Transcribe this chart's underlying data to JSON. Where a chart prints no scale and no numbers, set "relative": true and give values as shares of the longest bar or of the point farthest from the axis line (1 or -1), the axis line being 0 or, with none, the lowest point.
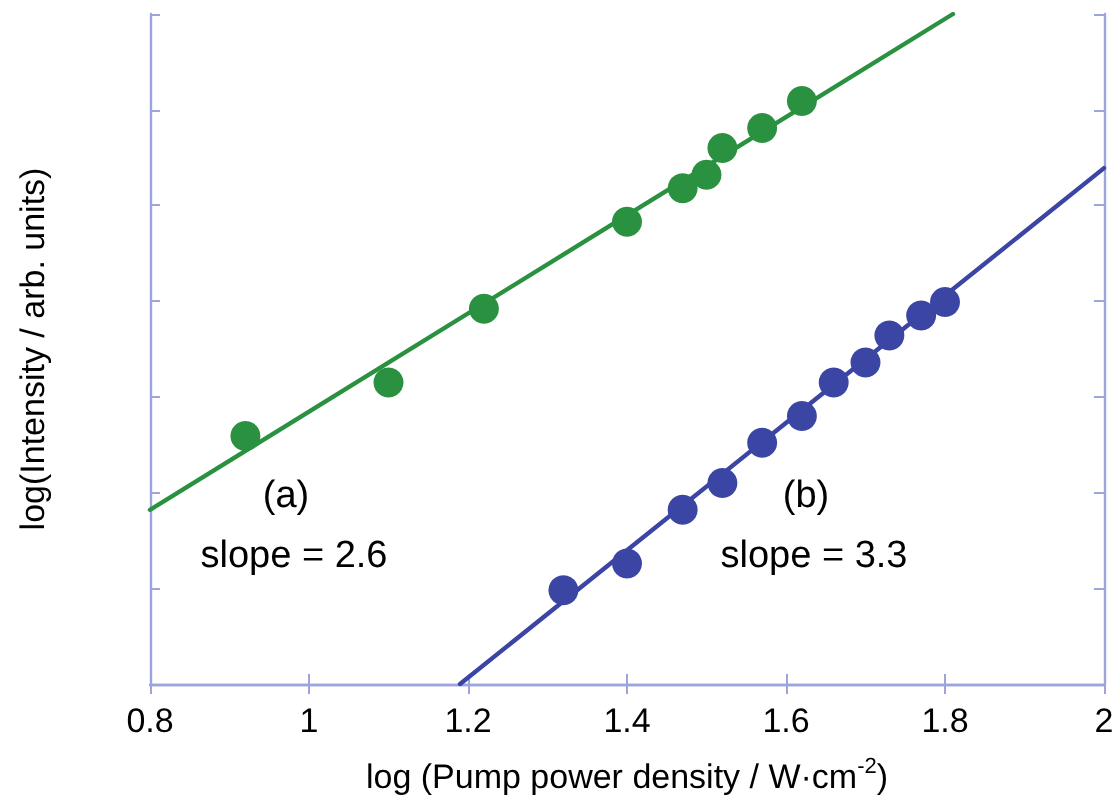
{
  "chart_data": {
    "type": "scatter",
    "xlabel": "log (Pump power density / W·cm$^{-2}$)",
    "ylabel": "log(Intensity / arb. units)",
    "relative": true,
    "xlim": [
      0.8,
      2
    ],
    "xticks": [
      0.8,
      1,
      1.2,
      1.4,
      1.6,
      1.8,
      2
    ],
    "grid": false,
    "marker": "circle",
    "series": [
      {
        "color": "#2a9140",
        "x": [
          0.92,
          1.1,
          1.22,
          1.4,
          1.47,
          1.5,
          1.52,
          1.57,
          1.62
        ],
        "values": [
          0.37,
          0.45,
          0.56,
          0.69,
          0.74,
          0.76,
          0.8,
          0.83,
          0.87
        ]
      },
      {
        "type": "line",
        "marker": "none",
        "line_style": "solid",
        "color": "#2a9140",
        "x": [
          0.8,
          1.81
        ],
        "values": [
          0.26,
          1
        ]
      },
      {
        "color": "#3b45a3",
        "x": [
          1.32,
          1.4,
          1.47,
          1.52,
          1.57,
          1.62,
          1.66,
          1.7,
          1.73,
          1.77,
          1.8
        ],
        "values": [
          0.14,
          0.18,
          0.26,
          0.3,
          0.36,
          0.4,
          0.45,
          0.48,
          0.52,
          0.55,
          0.57
        ]
      },
      {
        "type": "line",
        "marker": "none",
        "line_style": "solid",
        "color": "#3b45a3",
        "x": [
          1.19,
          2
        ],
        "values": [
          0,
          0.77
        ]
      }
    ],
    "annotations": [
      "(a)",
      "slope = 2.6",
      "(b)",
      "slope = 3.3"
    ]
  }
}
